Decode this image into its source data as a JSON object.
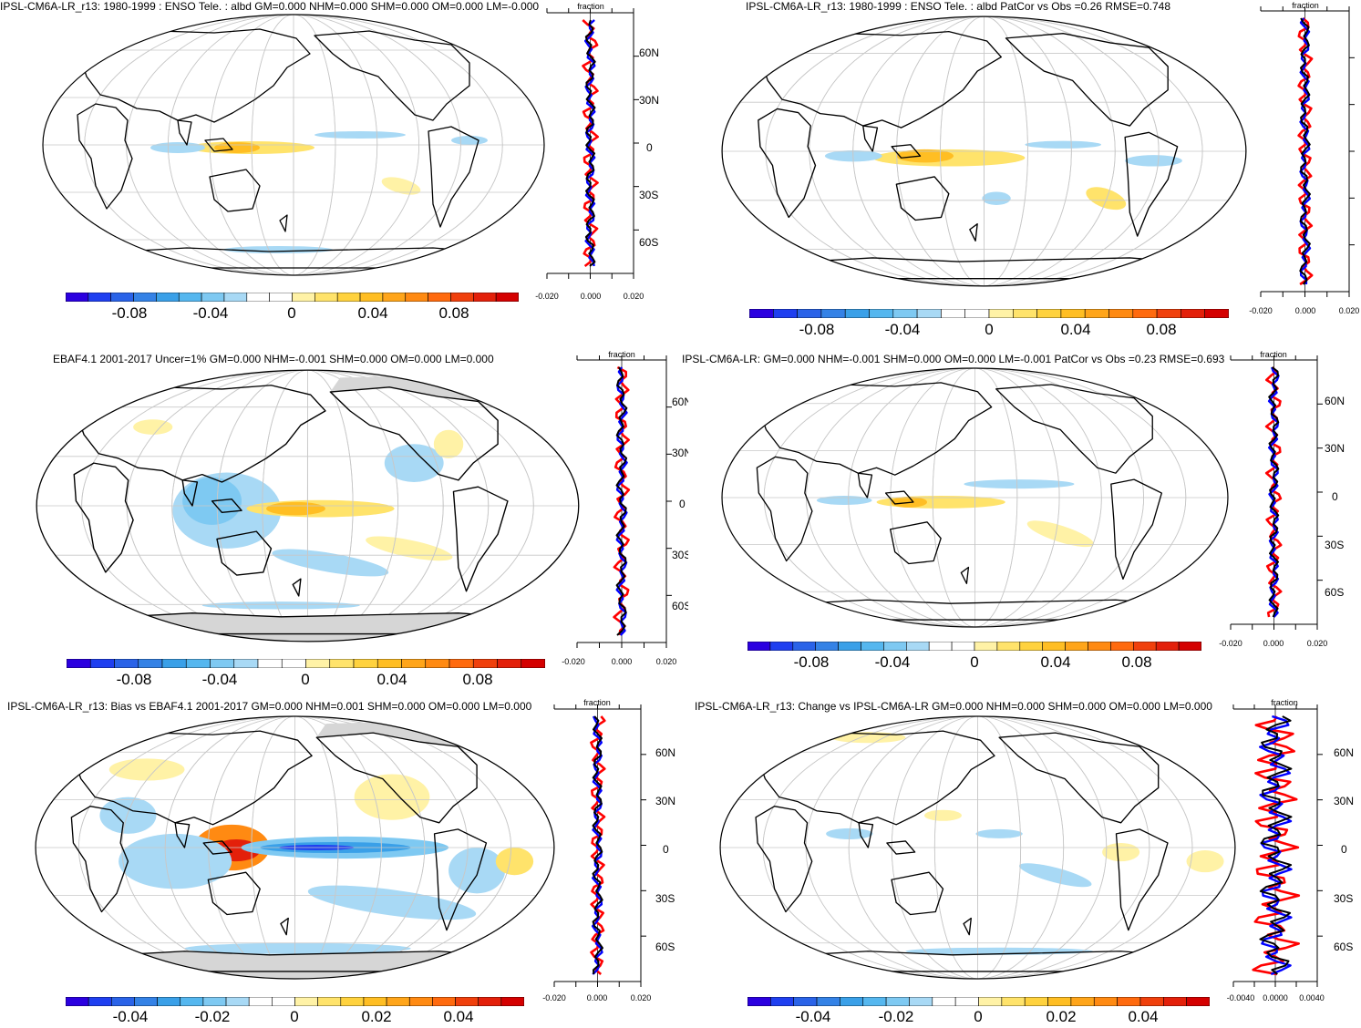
{
  "colors": {
    "scale": [
      "#2b00e0",
      "#1f3ff0",
      "#2a63e8",
      "#3482e6",
      "#3aa0e8",
      "#55b7ef",
      "#7ec9f2",
      "#a8d9f5",
      "#ffffff",
      "#ffffff",
      "#fff2a6",
      "#ffe36b",
      "#ffd23e",
      "#ffbe23",
      "#ffa51a",
      "#ff8a12",
      "#ff6a0e",
      "#f0400c",
      "#e3200a",
      "#d40000"
    ],
    "land": "#000000",
    "grid": "#c8c8c8",
    "nodata": "#d6d6d6",
    "line_red": "#ff0000",
    "line_blue": "#0000ff",
    "line_black": "#000000"
  },
  "panels": [
    {
      "title": "IPSL-CM6A-LR_r13: 1980-1999 : ENSO Tele. : albd GM=0.000 NHM=0.000 SHM=0.000 OM=0.000 LM=-0.000",
      "colorbar_ticks": [
        "-0.08",
        "-0.04",
        "0",
        "0.04",
        "0.08"
      ],
      "zonal_label": "fraction",
      "zonal_x_ticks": [
        "-0.020",
        "0.000",
        "0.020"
      ],
      "zonal_lat_labels": [
        "60N",
        "30N",
        "0",
        "30S",
        "60S"
      ]
    },
    {
      "title": "IPSL-CM6A-LR_r13: 1980-1999 : ENSO Tele. : albd PatCor vs Obs =0.26 RMSE=0.748",
      "colorbar_ticks": [
        "-0.08",
        "-0.04",
        "0",
        "0.04",
        "0.08"
      ],
      "zonal_label": "fraction",
      "zonal_x_ticks": [
        "-0.020",
        "0.000",
        "0.020"
      ],
      "zonal_lat_labels": []
    },
    {
      "title": "EBAF4.1 2001-2017 Uncer=1% GM=0.000 NHM=-0.001 SHM=0.000 OM=0.000 LM=0.000",
      "colorbar_ticks": [
        "-0.08",
        "-0.04",
        "0",
        "0.04",
        "0.08"
      ],
      "zonal_label": "fraction",
      "zonal_x_ticks": [
        "-0.020",
        "0.000",
        "0.020"
      ],
      "zonal_lat_labels": [
        "60N",
        "30N",
        "0",
        "30S",
        "60S"
      ]
    },
    {
      "title": "IPSL-CM6A-LR: GM=0.000 NHM=-0.001 SHM=0.000 OM=0.000 LM=-0.001 PatCor vs Obs =0.23 RMSE=0.693",
      "colorbar_ticks": [
        "-0.08",
        "-0.04",
        "0",
        "0.04",
        "0.08"
      ],
      "zonal_label": "fraction",
      "zonal_x_ticks": [
        "-0.020",
        "0.000",
        "0.020"
      ],
      "zonal_lat_labels": [
        "60N",
        "30N",
        "0",
        "30S",
        "60S"
      ]
    },
    {
      "title": "IPSL-CM6A-LR_r13: Bias vs EBAF4.1 2001-2017 GM=0.000 NHM=0.001 SHM=0.000 OM=0.000 LM=0.000",
      "colorbar_ticks": [
        "-0.04",
        "-0.02",
        "0",
        "0.02",
        "0.04"
      ],
      "zonal_label": "fraction",
      "zonal_x_ticks": [
        "-0.020",
        "0.000",
        "0.020"
      ],
      "zonal_lat_labels": [
        "60N",
        "30N",
        "0",
        "30S",
        "60S"
      ]
    },
    {
      "title": "IPSL-CM6A-LR_r13: Change vs IPSL-CM6A-LR GM=0.000 NHM=0.000 SHM=0.000 OM=0.000 LM=0.000",
      "colorbar_ticks": [
        "-0.04",
        "-0.02",
        "0",
        "0.02",
        "0.04"
      ],
      "zonal_label": "fraction",
      "zonal_x_ticks": [
        "-0.0040",
        "0.0000",
        "0.0040"
      ],
      "zonal_lat_labels": [
        "60N",
        "30N",
        "0",
        "30S",
        "60S"
      ]
    }
  ]
}
